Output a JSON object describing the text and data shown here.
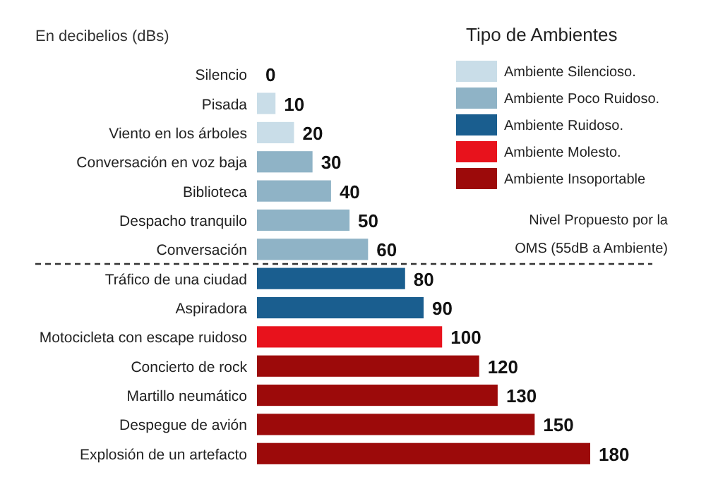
{
  "chart_data": {
    "type": "bar",
    "orientation": "horizontal",
    "title": "En decibelios (dBs)",
    "legend_title": "Tipo de Ambientes",
    "legend": "right",
    "data_labels": true,
    "categories": [
      "Silencio",
      "Pisada",
      "Viento en los árboles",
      "Conversación en voz baja",
      "Biblioteca",
      "Despacho tranquilo",
      "Conversación",
      "Tráfico de una ciudad",
      "Aspiradora",
      "Motocicleta con escape ruidoso",
      "Concierto de rock",
      "Martillo neumático",
      "Despegue de avión",
      "Explosión de un artefacto"
    ],
    "series": [
      {
        "name": "Ambiente Silencioso.",
        "color": "#c9dde8",
        "values": [
          0,
          10,
          20,
          null,
          null,
          null,
          null,
          null,
          null,
          null,
          null,
          null,
          null,
          null
        ]
      },
      {
        "name": "Ambiente Poco Ruidoso.",
        "color": "#8fb3c6",
        "values": [
          null,
          null,
          null,
          30,
          40,
          50,
          60,
          null,
          null,
          null,
          null,
          null,
          null,
          null
        ]
      },
      {
        "name": "Ambiente Ruidoso.",
        "color": "#1a5e8f",
        "values": [
          null,
          null,
          null,
          null,
          null,
          null,
          null,
          80,
          90,
          null,
          null,
          null,
          null,
          null
        ]
      },
      {
        "name": "Ambiente Molesto.",
        "color": "#e8121c",
        "values": [
          null,
          null,
          null,
          null,
          null,
          null,
          null,
          null,
          null,
          100,
          null,
          null,
          null,
          null
        ]
      },
      {
        "name": "Ambiente Insoportable",
        "color": "#9c0a0a",
        "values": [
          null,
          null,
          null,
          null,
          null,
          null,
          null,
          null,
          null,
          null,
          120,
          130,
          150,
          180
        ]
      }
    ],
    "ref_lines": [
      {
        "axis": "y",
        "value": "Conversación",
        "label": "Nivel Propuesto por la OMS (55dB a Ambiente)",
        "line_style": "dashed",
        "color": "#333333"
      }
    ]
  }
}
